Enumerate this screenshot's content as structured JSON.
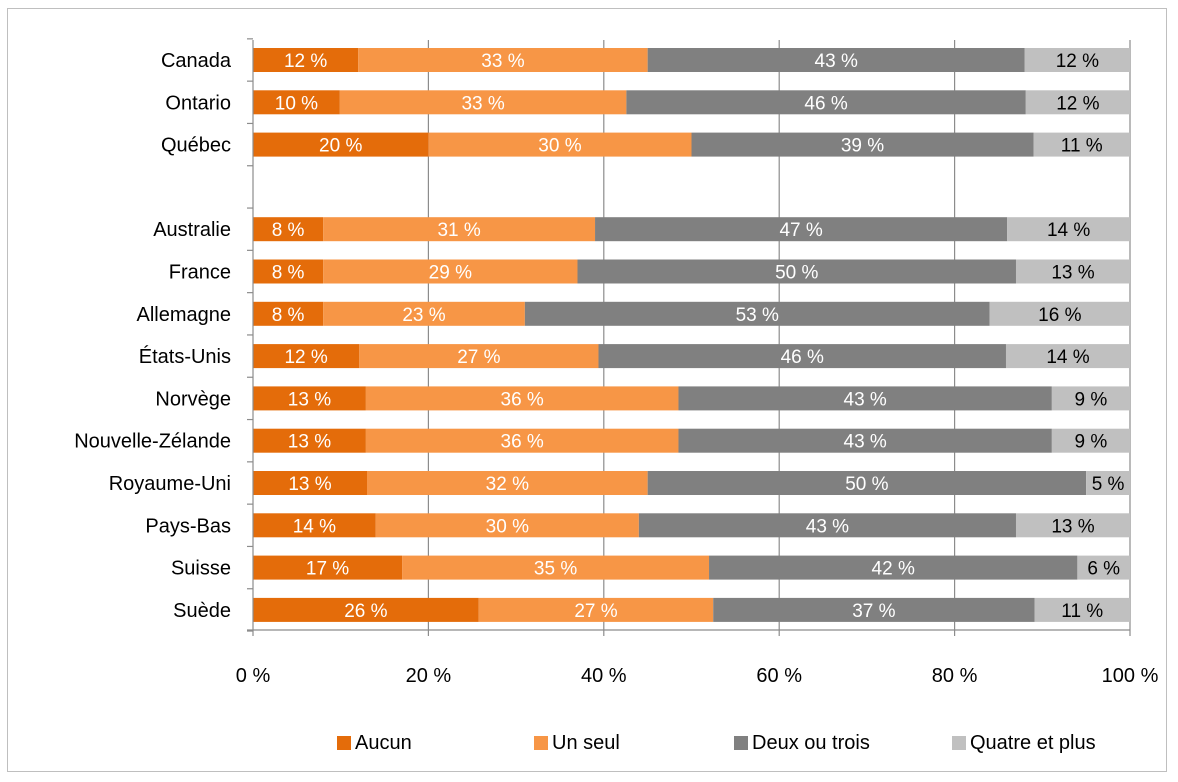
{
  "chart_data": {
    "type": "bar",
    "orientation": "horizontal",
    "stacked": "percent",
    "title": "",
    "xlabel": "",
    "ylabel": "",
    "xlim": [
      0,
      100
    ],
    "x_ticks": [
      "0 %",
      "20 %",
      "40 %",
      "60 %",
      "80 %",
      "100 %"
    ],
    "grid": "vertical",
    "legend_position": "bottom",
    "categories": [
      "Canada",
      "Ontario",
      "Québec",
      "",
      "Australie",
      "France",
      "Allemagne",
      "États-Unis",
      "Norvège",
      "Nouvelle-Zélande",
      "Royaume-Uni",
      "Pays-Bas",
      "Suisse",
      "Suède"
    ],
    "series": [
      {
        "name": "Aucun",
        "color": "#e46c0a",
        "label_color": "#ffffff",
        "values": [
          12,
          10,
          20,
          null,
          8,
          8,
          8,
          12,
          13,
          13,
          13,
          14,
          17,
          26
        ],
        "labels": [
          "12 %",
          "10 %",
          "20 %",
          "",
          "8 %",
          "8 %",
          "8 %",
          "12 %",
          "13 %",
          "13 %",
          "13 %",
          "14 %",
          "17 %",
          "26 %"
        ]
      },
      {
        "name": "Un seul",
        "color": "#f79646",
        "label_color": "#ffffff",
        "values": [
          33,
          33,
          30,
          null,
          31,
          29,
          23,
          27,
          36,
          36,
          32,
          30,
          35,
          27
        ],
        "labels": [
          "33 %",
          "33 %",
          "30 %",
          "",
          "31 %",
          "29 %",
          "23 %",
          "27 %",
          "36 %",
          "36 %",
          "32 %",
          "30 %",
          "35 %",
          "27 %"
        ]
      },
      {
        "name": "Deux ou trois",
        "color": "#808080",
        "label_color": "#ffffff",
        "values": [
          43,
          46,
          39,
          null,
          47,
          50,
          53,
          46,
          43,
          43,
          50,
          43,
          42,
          37
        ],
        "labels": [
          "43 %",
          "46 %",
          "39 %",
          "",
          "47 %",
          "50 %",
          "53 %",
          "46 %",
          "43 %",
          "43 %",
          "50 %",
          "43 %",
          "42 %",
          "37 %"
        ]
      },
      {
        "name": "Quatre et plus",
        "color": "#c0c0c0",
        "label_color": "#000000",
        "values": [
          12,
          12,
          11,
          null,
          14,
          13,
          16,
          14,
          9,
          9,
          5,
          13,
          6,
          11
        ],
        "labels": [
          "12 %",
          "12 %",
          "11 %",
          "",
          "14 %",
          "13 %",
          "16 %",
          "14 %",
          "9 %",
          "9 %",
          "5 %",
          "13 %",
          "6 %",
          "11 %"
        ]
      }
    ]
  }
}
